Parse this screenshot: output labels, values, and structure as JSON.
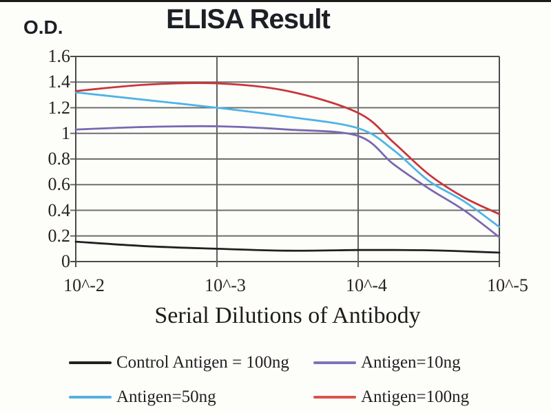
{
  "page": {
    "background": "#fdfdfa",
    "top_strip_color": "#1d1b1a",
    "grid_color": "#6e6e6e",
    "border_color": "#4a4a4a",
    "text_color": "#242021"
  },
  "title": "ELISA Result",
  "y_axis": {
    "label": "O.D.",
    "tick_labels_top_to_bottom": [
      "1.6",
      "1.4",
      "1.2",
      "1",
      "0.8",
      "0.6",
      "0.4",
      "0.2",
      "0"
    ]
  },
  "x_axis": {
    "label": "Serial Dilutions of Antibody",
    "tick_labels": [
      "10^-2",
      "10^-3",
      "10^-4",
      "10^-5"
    ]
  },
  "legend": {
    "items": [
      {
        "label": "Control Antigen = 100ng",
        "color": "#231f20"
      },
      {
        "label": "Antigen=10ng",
        "color": "#8072b8"
      },
      {
        "label": "Antigen=50ng",
        "color": "#55b1e2"
      },
      {
        "label": "Antigen=100ng",
        "color": "#d9534c"
      }
    ]
  },
  "chart_data": {
    "type": "line",
    "title": "ELISA Result",
    "xlabel": "Serial Dilutions of Antibody",
    "ylabel": "O.D.",
    "x_scale": "log (serial dilution)",
    "x_tick_labels": [
      "10^-2",
      "10^-3",
      "10^-4",
      "10^-5"
    ],
    "x_tick_positions": [
      0,
      1,
      2,
      3
    ],
    "x": [
      0,
      0.5,
      1,
      1.5,
      2,
      2.25,
      2.5,
      2.75,
      3
    ],
    "xlim": [
      0,
      3
    ],
    "ylim": [
      0,
      1.6
    ],
    "y_step": 0.2,
    "grid": true,
    "legend_position": "bottom",
    "series": [
      {
        "name": "Control Antigen = 100ng",
        "color": "#231f20",
        "values": [
          0.155,
          0.12,
          0.1,
          0.085,
          0.09,
          0.09,
          0.088,
          0.08,
          0.07
        ]
      },
      {
        "name": "Antigen=10ng",
        "color": "#7a68b0",
        "values": [
          1.03,
          1.05,
          1.055,
          1.03,
          0.98,
          0.76,
          0.57,
          0.4,
          0.19
        ]
      },
      {
        "name": "Antigen=50ng",
        "color": "#4db4e7",
        "values": [
          1.32,
          1.26,
          1.2,
          1.13,
          1.04,
          0.87,
          0.63,
          0.47,
          0.27
        ]
      },
      {
        "name": "Antigen=100ng",
        "color": "#c8353a",
        "values": [
          1.33,
          1.38,
          1.39,
          1.33,
          1.16,
          0.93,
          0.68,
          0.5,
          0.37
        ]
      }
    ]
  }
}
